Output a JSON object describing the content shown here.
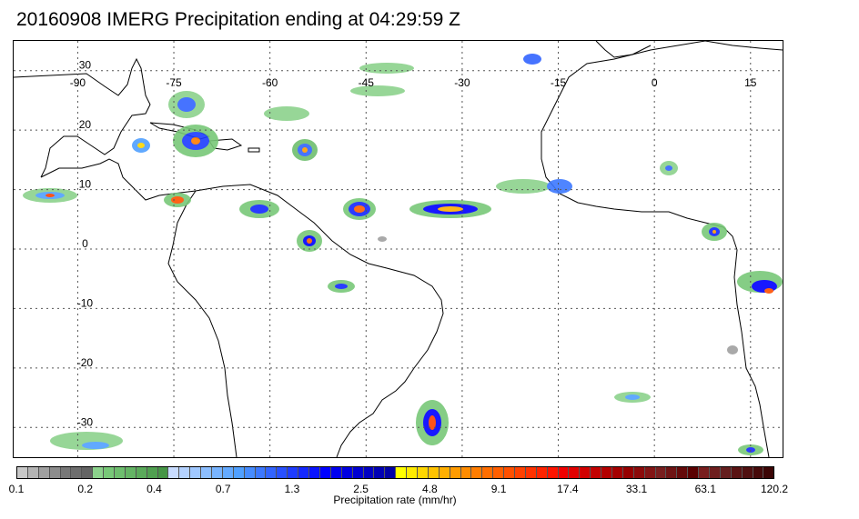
{
  "title": "20160908 IMERG Precipitation ending at 04:29:59 Z",
  "map": {
    "lon_labels": [
      "-90",
      "-75",
      "-60",
      "-45",
      "-30",
      "-15",
      "0",
      "15"
    ],
    "lat_labels": [
      "30",
      "20",
      "10",
      "0",
      "-10",
      "-20",
      "-30"
    ],
    "lon_values": [
      -90,
      -75,
      -60,
      -45,
      -30,
      -15,
      0,
      15
    ],
    "lat_values": [
      30,
      20,
      10,
      0,
      -10,
      -20,
      -30
    ],
    "lon_range": [
      -100,
      20
    ],
    "lat_range": [
      35,
      -35
    ],
    "gridlines": "dotted",
    "land_outline_color": "#000000"
  },
  "colorbar": {
    "title": "Precipitation rate (mm/hr)",
    "labels": [
      "0.1",
      "0.2",
      "0.4",
      "0.7",
      "1.3",
      "2.5",
      "4.8",
      "9.1",
      "17.4",
      "33.1",
      "63.1",
      "120.2"
    ],
    "colors": [
      "#c8c8c8",
      "#b4b4b4",
      "#a0a0a0",
      "#8c8c8c",
      "#787878",
      "#6e6e6e",
      "#646464",
      "#8cd28c",
      "#78c878",
      "#6ebe6e",
      "#64b464",
      "#5aaa5a",
      "#50a050",
      "#469646",
      "#c8dcff",
      "#b4d2ff",
      "#a0c8ff",
      "#8cbeff",
      "#78b4ff",
      "#64aaff",
      "#50a0ff",
      "#468cff",
      "#3c78ff",
      "#3264ff",
      "#2850ff",
      "#1e3cff",
      "#1428ff",
      "#0a14ff",
      "#0000ff",
      "#0000f0",
      "#0000e1",
      "#0000d2",
      "#0000c3",
      "#0000b4",
      "#0000a5",
      "#ffff00",
      "#ffeb00",
      "#ffd700",
      "#ffc300",
      "#ffaf00",
      "#ff9b00",
      "#ff8c00",
      "#ff7d00",
      "#ff6e00",
      "#ff5f00",
      "#ff5000",
      "#ff4100",
      "#ff3200",
      "#ff2300",
      "#ff1400",
      "#f00000",
      "#e10000",
      "#d20000",
      "#c30000",
      "#b40000",
      "#a50000",
      "#960000",
      "#8c0a0a",
      "#821414",
      "#781e1e",
      "#6e1414",
      "#640a0a",
      "#5a0000",
      "#781e1e",
      "#6e1e1e",
      "#641e1e",
      "#5a1414",
      "#501010",
      "#460a0a",
      "#3c0505"
    ]
  }
}
